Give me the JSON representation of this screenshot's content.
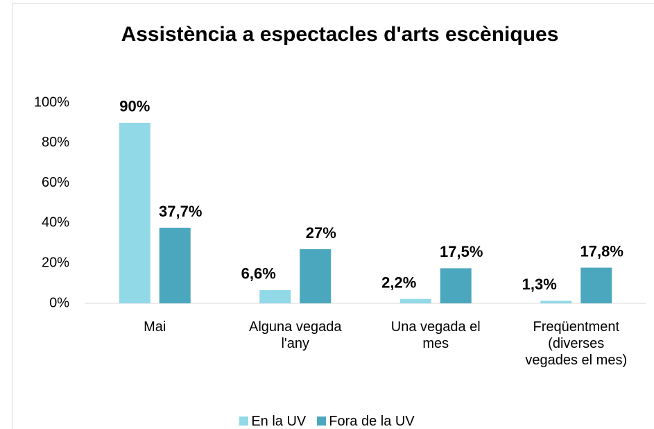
{
  "chart_data": {
    "type": "bar",
    "title": "Assistència a espectacles d'arts escèniques",
    "categories": [
      "Mai",
      "Alguna vegada l'any",
      "Una vegada el mes",
      "Freqüentment (diverses vegades el mes)"
    ],
    "series": [
      {
        "name": "En la UV",
        "color": "#92d9e8",
        "values": [
          90,
          6.6,
          2.2,
          1.3
        ],
        "value_labels": [
          "90%",
          "6,6%",
          "2,2%",
          "1,3%"
        ]
      },
      {
        "name": "Fora de la UV",
        "color": "#4ba7bd",
        "values": [
          37.7,
          27,
          17.5,
          17.8
        ],
        "value_labels": [
          "37,7%",
          "27%",
          "17,5%",
          "17,8%"
        ]
      }
    ],
    "ylim": [
      0,
      100
    ],
    "yticks": [
      {
        "value": 0,
        "label": "0%"
      },
      {
        "value": 20,
        "label": "20%"
      },
      {
        "value": 40,
        "label": "40%"
      },
      {
        "value": 60,
        "label": "60%"
      },
      {
        "value": 80,
        "label": "80%"
      },
      {
        "value": 100,
        "label": "100%"
      }
    ],
    "legend": "bottom"
  }
}
